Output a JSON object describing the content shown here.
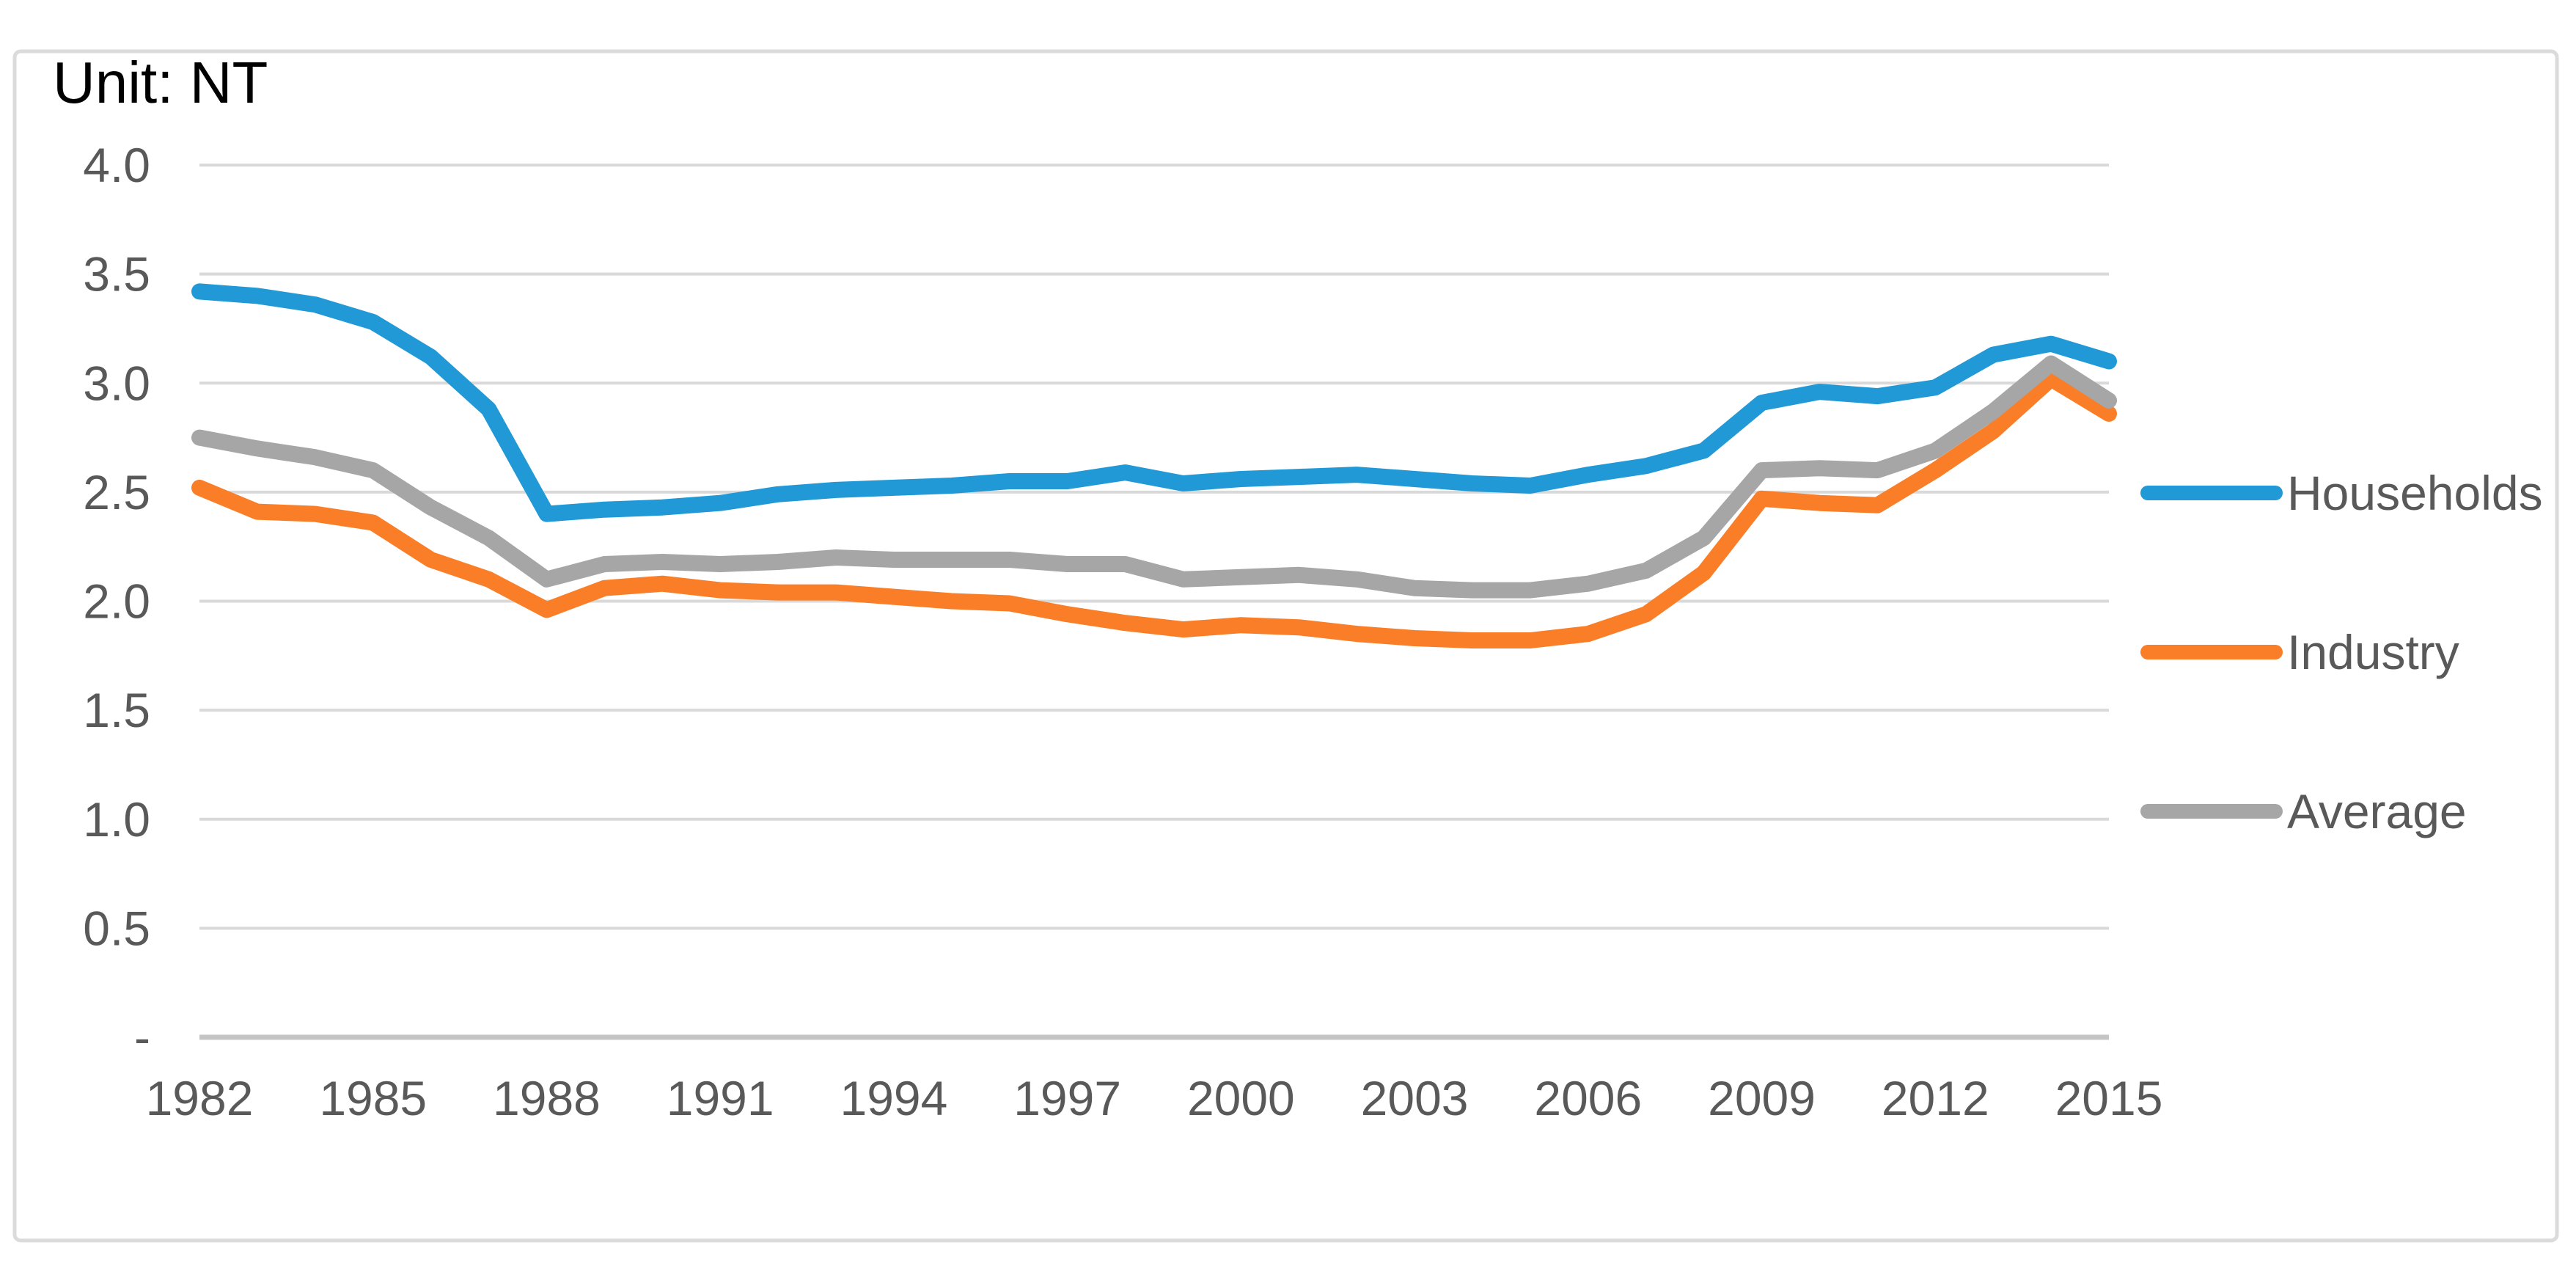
{
  "title": "Unit: NT",
  "chart_data": {
    "type": "line",
    "x": [
      1982,
      1983,
      1984,
      1985,
      1986,
      1987,
      1988,
      1989,
      1990,
      1991,
      1992,
      1993,
      1994,
      1995,
      1996,
      1997,
      1998,
      1999,
      2000,
      2001,
      2002,
      2003,
      2004,
      2005,
      2006,
      2007,
      2008,
      2009,
      2010,
      2011,
      2012,
      2013,
      2014,
      2015
    ],
    "x_tick_labels": [
      "1982",
      "1985",
      "1988",
      "1991",
      "1994",
      "1997",
      "2000",
      "2003",
      "2006",
      "2009",
      "2012",
      "2015"
    ],
    "y_tick_labels": [
      "4.0",
      "3.5",
      "3.0",
      "2.5",
      "2.0",
      "1.5",
      "1.0",
      "0.5",
      "-"
    ],
    "ylim": [
      0,
      4.0
    ],
    "y_step": 0.5,
    "grid": true,
    "legend_position": "right",
    "title": "Unit: NT",
    "xlabel": "",
    "ylabel": "",
    "series": [
      {
        "name": "Households",
        "color": "#2199D6",
        "values": [
          3.42,
          3.4,
          3.36,
          3.28,
          3.12,
          2.88,
          2.4,
          2.42,
          2.43,
          2.45,
          2.49,
          2.51,
          2.52,
          2.53,
          2.55,
          2.55,
          2.59,
          2.54,
          2.56,
          2.57,
          2.58,
          2.56,
          2.54,
          2.53,
          2.58,
          2.62,
          2.69,
          2.91,
          2.96,
          2.94,
          2.98,
          3.13,
          3.18,
          3.1
        ]
      },
      {
        "name": "Industry",
        "color": "#F97E27",
        "values": [
          2.52,
          2.41,
          2.4,
          2.36,
          2.19,
          2.1,
          1.96,
          2.06,
          2.08,
          2.05,
          2.04,
          2.04,
          2.02,
          2.0,
          1.99,
          1.94,
          1.9,
          1.87,
          1.89,
          1.88,
          1.85,
          1.83,
          1.82,
          1.82,
          1.85,
          1.94,
          2.13,
          2.47,
          2.45,
          2.44,
          2.6,
          2.78,
          3.02,
          2.86
        ]
      },
      {
        "name": "Average",
        "color": "#A6A6A6",
        "values": [
          2.75,
          2.7,
          2.66,
          2.6,
          2.43,
          2.29,
          2.1,
          2.17,
          2.18,
          2.17,
          2.18,
          2.2,
          2.19,
          2.19,
          2.19,
          2.17,
          2.17,
          2.1,
          2.11,
          2.12,
          2.1,
          2.06,
          2.05,
          2.05,
          2.08,
          2.14,
          2.29,
          2.6,
          2.61,
          2.6,
          2.69,
          2.87,
          3.09,
          2.92
        ]
      }
    ]
  },
  "colors": {
    "background": "#FFFFFF",
    "border": "#DBDBDB",
    "gridline": "#D9D9D9",
    "axis_line": "#C5C5C5",
    "tick_label": "#595959",
    "legend_label": "#595959",
    "title": "#000000"
  }
}
